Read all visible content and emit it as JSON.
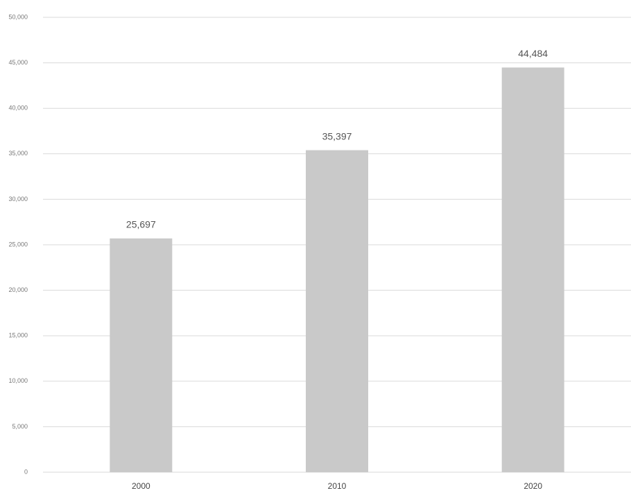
{
  "chart_data": {
    "type": "bar",
    "categories": [
      "2000",
      "2010",
      "2020"
    ],
    "values": [
      25697,
      35397,
      44484
    ],
    "value_labels": [
      "25,697",
      "35,397",
      "44,484"
    ],
    "color": "#c9c9c9",
    "ylim": [
      0,
      50000
    ],
    "yticks": [
      0,
      {
        "value": 5000,
        "label": "5,000"
      },
      {
        "value": 10000,
        "label": "10,000"
      },
      {
        "value": 15000,
        "label": "15,000"
      },
      {
        "value": 20000,
        "label": "20,000"
      },
      {
        "value": 25000,
        "label": "25,000"
      },
      {
        "value": 30000,
        "label": "30,000"
      },
      {
        "value": 35000,
        "label": "35,000"
      },
      {
        "value": 40000,
        "label": "40,000"
      },
      {
        "value": 45000,
        "label": "45,000"
      },
      {
        "value": 50000,
        "label": "50,000"
      }
    ],
    "grid": true
  }
}
